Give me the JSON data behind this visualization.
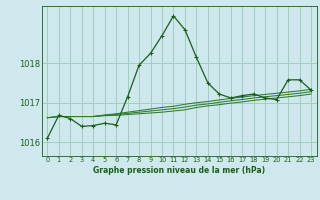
{
  "title": "Graphe pression niveau de la mer (hPa)",
  "background_color": "#cfe8ee",
  "grid_color": "#9fcfbf",
  "line_color": "#1a5e1a",
  "line_color2": "#2d7a2d",
  "xlim": [
    -0.5,
    23.5
  ],
  "ylim": [
    1015.65,
    1019.45
  ],
  "yticks": [
    1016,
    1017,
    1018
  ],
  "xtick_labels": [
    "0",
    "1",
    "2",
    "3",
    "4",
    "5",
    "6",
    "7",
    "8",
    "9",
    "10",
    "11",
    "12",
    "13",
    "14",
    "15",
    "16",
    "17",
    "18",
    "19",
    "20",
    "21",
    "22",
    "23"
  ],
  "main_series": [
    1016.1,
    1016.68,
    1016.6,
    1016.4,
    1016.42,
    1016.48,
    1016.44,
    1017.15,
    1017.95,
    1018.25,
    1018.7,
    1019.2,
    1018.85,
    1018.15,
    1017.5,
    1017.22,
    1017.12,
    1017.18,
    1017.22,
    1017.12,
    1017.08,
    1017.58,
    1017.58,
    1017.32
  ],
  "ref_lines": [
    [
      1016.62,
      1016.65,
      1016.65,
      1016.65,
      1016.65,
      1016.67,
      1016.68,
      1016.7,
      1016.72,
      1016.74,
      1016.76,
      1016.79,
      1016.82,
      1016.88,
      1016.92,
      1016.95,
      1016.99,
      1017.02,
      1017.06,
      1017.09,
      1017.12,
      1017.15,
      1017.18,
      1017.22
    ],
    [
      1016.62,
      1016.65,
      1016.65,
      1016.65,
      1016.65,
      1016.68,
      1016.7,
      1016.73,
      1016.76,
      1016.79,
      1016.82,
      1016.85,
      1016.89,
      1016.94,
      1016.97,
      1017.01,
      1017.05,
      1017.08,
      1017.12,
      1017.15,
      1017.18,
      1017.21,
      1017.24,
      1017.28
    ],
    [
      1016.62,
      1016.65,
      1016.65,
      1016.65,
      1016.65,
      1016.69,
      1016.72,
      1016.76,
      1016.8,
      1016.84,
      1016.88,
      1016.91,
      1016.96,
      1017.0,
      1017.03,
      1017.07,
      1017.11,
      1017.14,
      1017.18,
      1017.21,
      1017.24,
      1017.27,
      1017.3,
      1017.34
    ]
  ]
}
